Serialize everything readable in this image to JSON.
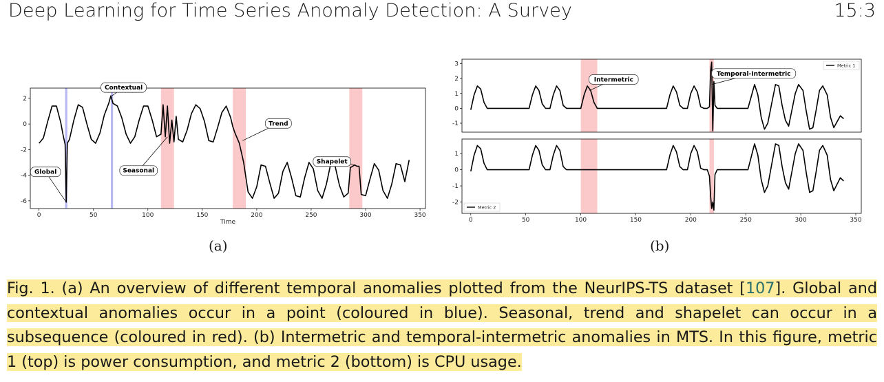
{
  "header": {
    "running_title": "Deep Learning for Time Series Anomaly Detection: A Survey",
    "page_number": "15:3"
  },
  "figure": {
    "subfig_a_label": "(a)",
    "subfig_b_label": "(b)",
    "caption": {
      "part1": "Fig. 1.  (a) An overview of different temporal anomalies plotted from the NeurIPS-TS dataset [",
      "ref": "107",
      "part2": "]. Global and contextual anomalies occur in a point (coloured in blue). Seasonal, trend and shapelet can occur in a subsequence (coloured in red). (b) Intermetric and temporal-intermetric anomalies in MTS. In this figure, metric 1 (top) is power consumption, and metric 2 (bottom) is CPU usage."
    }
  },
  "chart_data": [
    {
      "type": "line",
      "panel": "a",
      "title": "",
      "xlabel": "Time",
      "ylabel": "",
      "xlim": [
        -8,
        355
      ],
      "ylim": [
        -6.6,
        2.8
      ],
      "x_ticks": [
        0,
        50,
        100,
        150,
        200,
        250,
        300,
        350
      ],
      "y_ticks": [
        2,
        0,
        -2,
        -4,
        -6
      ],
      "grid": false,
      "point_anomalies_blue": [
        {
          "x_start": 24,
          "x_end": 26
        },
        {
          "x_start": 66,
          "x_end": 68
        }
      ],
      "subsequence_anomalies_red": [
        {
          "x_start": 112,
          "x_end": 124
        },
        {
          "x_start": 178,
          "x_end": 190
        },
        {
          "x_start": 285,
          "x_end": 297
        }
      ],
      "annotations": [
        {
          "text": "Global",
          "x": 25,
          "y": -6.1
        },
        {
          "text": "Contextual",
          "x": 67,
          "y": 2.2
        },
        {
          "text": "Seasonal",
          "x": 118,
          "y": -1.0
        },
        {
          "text": "Trend",
          "x": 187,
          "y": -1.3
        },
        {
          "text": "Shapelet",
          "x": 290,
          "y": -3.2
        }
      ],
      "series": [
        {
          "name": "",
          "x": [
            0,
            4,
            8,
            12,
            16,
            20,
            22,
            24,
            25,
            26,
            28,
            32,
            36,
            40,
            44,
            48,
            52,
            56,
            60,
            64,
            66,
            67,
            68,
            72,
            76,
            80,
            84,
            88,
            92,
            96,
            100,
            104,
            108,
            112,
            114,
            116,
            118,
            120,
            122,
            124,
            126,
            128,
            132,
            136,
            140,
            144,
            148,
            152,
            156,
            160,
            164,
            168,
            172,
            176,
            178,
            180,
            184,
            188,
            192,
            196,
            200,
            204,
            208,
            212,
            216,
            220,
            224,
            228,
            232,
            236,
            240,
            244,
            248,
            252,
            256,
            260,
            264,
            268,
            272,
            276,
            280,
            284,
            286,
            288,
            290,
            292,
            294,
            296,
            300,
            304,
            308,
            312,
            316,
            320,
            324,
            328,
            332,
            336,
            340
          ],
          "y": [
            -1.5,
            -1.1,
            0.2,
            1.4,
            1.4,
            0.1,
            -0.8,
            -1.6,
            -6.1,
            -1.5,
            -1.2,
            0.3,
            1.5,
            1.3,
            0,
            -1.2,
            -1.5,
            -0.7,
            0.7,
            1.6,
            2.2,
            1.9,
            1.6,
            1.4,
            0.5,
            -0.8,
            -1.5,
            -1.0,
            0.3,
            1.4,
            1.4,
            0.3,
            -1.0,
            -0.8,
            1.5,
            -1.0,
            1.4,
            -1.5,
            0.3,
            -1.4,
            0.6,
            -1.2,
            -1.4,
            -0.5,
            0.8,
            1.5,
            1.2,
            0.2,
            -1.3,
            -1.4,
            -0.3,
            0.9,
            1.4,
            0.5,
            -0.2,
            -0.7,
            -1.5,
            -3.0,
            -5.3,
            -5.8,
            -4.9,
            -3.2,
            -3.3,
            -4.6,
            -5.8,
            -5.4,
            -3.7,
            -3.0,
            -4.2,
            -5.6,
            -5.7,
            -4.2,
            -3.0,
            -3.5,
            -5.2,
            -5.8,
            -4.7,
            -3.1,
            -3.3,
            -4.8,
            -5.7,
            -5.4,
            -3.4,
            -3.3,
            -3.2,
            -3.3,
            -3.3,
            -5.5,
            -5.6,
            -4.3,
            -3.1,
            -3.6,
            -5.2,
            -5.8,
            -4.7,
            -3.1,
            -3.2,
            -4.5,
            -2.8
          ]
        }
      ]
    },
    {
      "type": "line",
      "panel": "b-top",
      "title": "",
      "xlabel": "",
      "ylabel": "",
      "xlim": [
        -8,
        355
      ],
      "ylim": [
        -1.6,
        3.3
      ],
      "y_ticks": [
        3,
        2,
        1,
        0,
        -1
      ],
      "grid": false,
      "legend": {
        "entries": [
          "Metric 1"
        ],
        "placement": "top-right"
      },
      "subsequence_anomalies_red": [
        {
          "x_start": 100,
          "x_end": 115
        },
        {
          "x_start": 217,
          "x_end": 221
        }
      ],
      "annotations": [
        {
          "text": "Intermetric",
          "x": 108,
          "y": 1.2
        },
        {
          "text": "Temporal-Intermetric",
          "x": 219,
          "y": 1.6
        }
      ],
      "series": [
        {
          "name": "Metric 1",
          "x": [
            0,
            3,
            6,
            9,
            12,
            15,
            18,
            50,
            53,
            56,
            59,
            62,
            65,
            68,
            72,
            75,
            78,
            81,
            84,
            87,
            90,
            100,
            103,
            106,
            109,
            112,
            115,
            118,
            175,
            178,
            181,
            184,
            187,
            190,
            193,
            197,
            200,
            203,
            206,
            209,
            212,
            215,
            217,
            218,
            219,
            220,
            221,
            222,
            224,
            252,
            255,
            258,
            261,
            264,
            267,
            270,
            274,
            277,
            280,
            283,
            286,
            289,
            292,
            295,
            298,
            302,
            305,
            308,
            311,
            314,
            317,
            320,
            324,
            327,
            330,
            333,
            336,
            339
          ],
          "y": [
            -0.1,
            0.9,
            1.5,
            1.3,
            0.4,
            0,
            0,
            0,
            0,
            0.9,
            1.5,
            1.2,
            0.3,
            0,
            0,
            0.9,
            1.5,
            1.2,
            0.2,
            0,
            0,
            0,
            0.9,
            1.5,
            1.2,
            0.4,
            0,
            0,
            0,
            0,
            0.9,
            1.5,
            1.1,
            0.2,
            0,
            0,
            1.0,
            1.5,
            1.1,
            0.1,
            0,
            0,
            0.1,
            2.5,
            3.1,
            -1.5,
            1.8,
            0.2,
            0,
            0,
            0.8,
            1.6,
            0.9,
            -0.6,
            -1.4,
            -1.0,
            0.5,
            1.6,
            1.5,
            0.2,
            -0.8,
            -1.2,
            -0.1,
            1.0,
            1.6,
            1.2,
            -0.2,
            -1.4,
            -1.3,
            -0.1,
            1.2,
            1.5,
            0.9,
            -0.6,
            -1.3,
            -0.9,
            -0.5,
            -0.7
          ]
        }
      ]
    },
    {
      "type": "line",
      "panel": "b-bottom",
      "title": "",
      "xlabel": "",
      "ylabel": "",
      "xlim": [
        -8,
        355
      ],
      "ylim": [
        -2.7,
        1.9
      ],
      "x_ticks": [
        0,
        50,
        100,
        150,
        200,
        250,
        300,
        350
      ],
      "y_ticks": [
        1,
        0,
        -1,
        -2
      ],
      "grid": false,
      "legend": {
        "entries": [
          "Metric 2"
        ],
        "placement": "bottom-left"
      },
      "subsequence_anomalies_red": [
        {
          "x_start": 100,
          "x_end": 115
        },
        {
          "x_start": 217,
          "x_end": 221
        }
      ],
      "series": [
        {
          "name": "Metric 2",
          "x": [
            0,
            3,
            6,
            9,
            12,
            15,
            18,
            50,
            53,
            56,
            59,
            62,
            65,
            68,
            72,
            75,
            78,
            81,
            84,
            87,
            90,
            100,
            103,
            106,
            109,
            112,
            115,
            118,
            175,
            178,
            181,
            184,
            187,
            190,
            193,
            197,
            200,
            203,
            206,
            209,
            212,
            215,
            217,
            218,
            219,
            220,
            221,
            222,
            224,
            252,
            255,
            258,
            261,
            264,
            267,
            270,
            274,
            277,
            280,
            283,
            286,
            289,
            292,
            295,
            298,
            302,
            305,
            308,
            311,
            314,
            317,
            320,
            324,
            327,
            330,
            333,
            336,
            339
          ],
          "y": [
            -0.1,
            0.9,
            1.5,
            1.3,
            0.4,
            0,
            0,
            0,
            0,
            0.9,
            1.5,
            1.2,
            0.3,
            0,
            0,
            0.9,
            1.5,
            1.2,
            0.2,
            0,
            0,
            0,
            0,
            0,
            0,
            0,
            0,
            0,
            0,
            0,
            0.9,
            1.5,
            1.1,
            0.2,
            0,
            0,
            1.0,
            1.5,
            1.1,
            0.1,
            0,
            0,
            -0.4,
            -1.6,
            -2.4,
            -2.0,
            -2.5,
            -0.3,
            0,
            0,
            0.8,
            1.6,
            0.9,
            -0.6,
            -1.4,
            -1.0,
            0.5,
            1.6,
            1.5,
            0.2,
            -0.8,
            -1.2,
            -0.1,
            1.0,
            1.6,
            1.2,
            -0.2,
            -1.4,
            -1.3,
            -0.1,
            1.2,
            1.5,
            0.9,
            -0.6,
            -1.3,
            -0.9,
            -0.5,
            -0.7
          ]
        }
      ]
    }
  ]
}
